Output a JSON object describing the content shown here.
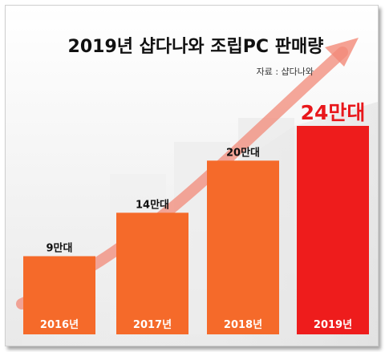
{
  "chart_data": {
    "type": "bar",
    "title": "2019년 샵다나와 조립PC 판매량",
    "source": "자료 : 샵다나와",
    "categories": [
      "2016년",
      "2017년",
      "2018년",
      "2019년"
    ],
    "values": [
      9,
      14,
      20,
      24
    ],
    "value_labels": [
      "9만대",
      "14만대",
      "20만대",
      "24만대"
    ],
    "unit": "만대",
    "ylim": [
      0,
      24
    ],
    "grid": false,
    "colors": {
      "bar": "#f56a2a",
      "highlight_bar": "#ee1c1c",
      "highlight_label": "#e8171b",
      "arrow": "#f28a78",
      "bar_text": "#ffffff"
    }
  }
}
